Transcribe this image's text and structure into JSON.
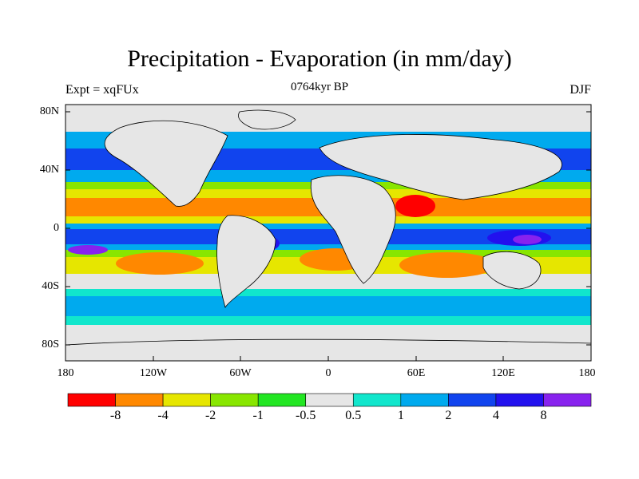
{
  "title": "Precipitation - Evaporation (in mm/day)",
  "subtitle": "0764kyr BP",
  "left_label": "Expt = xqFUx",
  "right_label": "DJF",
  "y_ticks": [
    "80N",
    "40N",
    "0",
    "40S",
    "80S"
  ],
  "x_ticks": [
    "180",
    "120W",
    "60W",
    "0",
    "60E",
    "120E",
    "180"
  ],
  "colorbar": {
    "colors": [
      "#ff0000",
      "#ff8800",
      "#e6e600",
      "#88e600",
      "#22e622",
      "#e6e6e6",
      "#11e6cc",
      "#00aaee",
      "#1144ee",
      "#2211ee",
      "#8822ee"
    ],
    "labels": [
      "-8",
      "-4",
      "-2",
      "-1",
      "-0.5",
      "0.5",
      "1",
      "2",
      "4",
      "8"
    ]
  },
  "colors": {
    "ocean_neutral": "#e6e6e6",
    "coastline": "#000000"
  }
}
